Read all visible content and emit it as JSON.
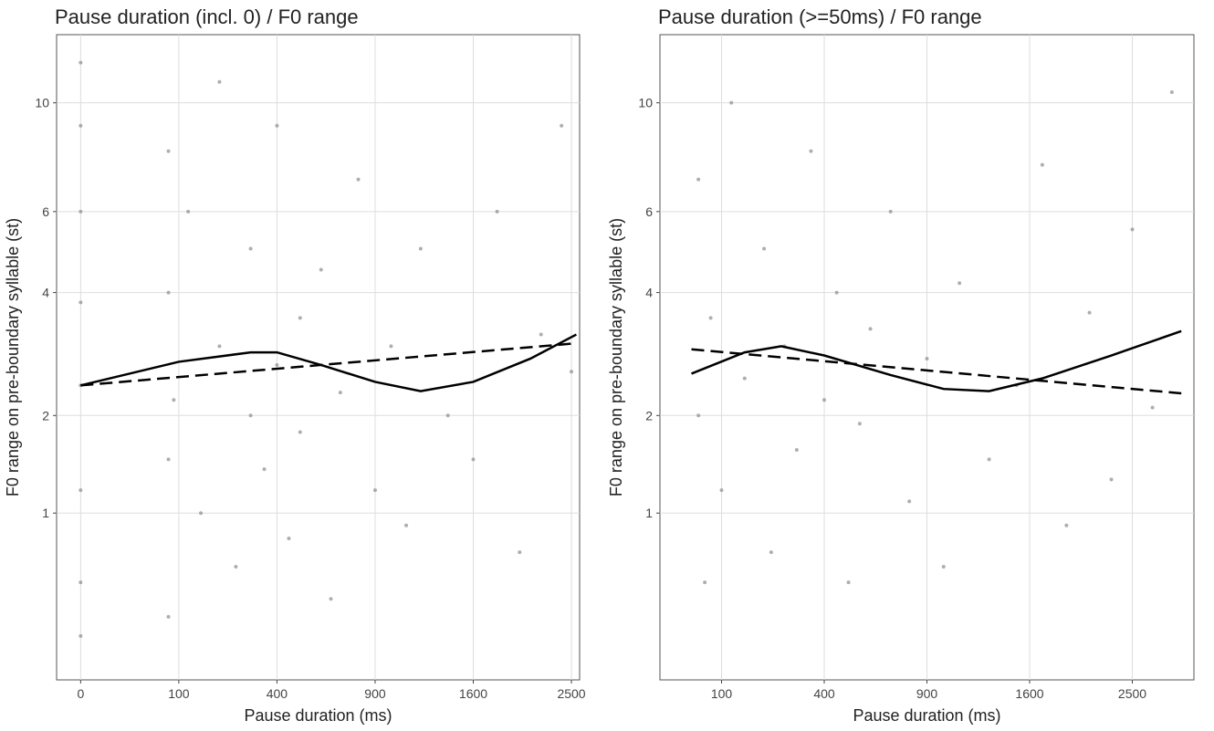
{
  "chart_data": [
    {
      "type": "scatter",
      "title": "Pause duration (incl. 0) / F0 range",
      "xlabel": "Pause duration (ms)",
      "ylabel": "F0 range on pre-boundary syllable (st)",
      "xscale": "sqrt",
      "yscale": "log1p",
      "grid": true,
      "xlim": [
        -6,
        2584
      ],
      "ylim": [
        0,
        13.6
      ],
      "xticks": [
        0,
        100,
        400,
        900,
        1600,
        2500
      ],
      "yticks": [
        1,
        2,
        4,
        6,
        10
      ],
      "series": [
        {
          "type": "scatter",
          "color": "#8c8c8c",
          "x": [
            0,
            0,
            0,
            0,
            0,
            0,
            0,
            0,
            80,
            80,
            80,
            80,
            90,
            120,
            150,
            200,
            200,
            250,
            300,
            300,
            350,
            400,
            400,
            450,
            500,
            500,
            600,
            650,
            700,
            800,
            900,
            1000,
            1100,
            1200,
            1400,
            1600,
            1800,
            2000,
            2200,
            2400,
            2500
          ],
          "values": [
            0.5,
            1.2,
            2.4,
            3.8,
            6,
            9,
            12,
            0.2,
            1.5,
            4,
            8,
            0.3,
            2.2,
            6,
            1,
            3,
            11,
            0.6,
            2,
            5,
            1.4,
            2.7,
            9,
            0.8,
            3.5,
            1.8,
            4.5,
            0.4,
            2.3,
            7,
            1.2,
            3,
            0.9,
            5,
            2,
            1.5,
            6,
            0.7,
            3.2,
            9,
            2.6
          ]
        },
        {
          "type": "line",
          "style": "solid",
          "color": "#000000",
          "x": [
            0,
            100,
            300,
            400,
            600,
            900,
            1200,
            1600,
            2100,
            2550
          ],
          "values": [
            2.4,
            2.75,
            2.9,
            2.9,
            2.7,
            2.45,
            2.32,
            2.45,
            2.8,
            3.2
          ]
        },
        {
          "type": "line",
          "style": "dashed",
          "color": "#000000",
          "x": [
            0,
            2550
          ],
          "values": [
            2.4,
            3.05
          ]
        }
      ]
    },
    {
      "type": "scatter",
      "title": "Pause duration (>=50ms) / F0 range",
      "xlabel": "Pause duration (ms)",
      "ylabel": "F0 range on pre-boundary syllable (st)",
      "xscale": "sqrt",
      "yscale": "log1p",
      "grid": true,
      "xlim": [
        16,
        3136
      ],
      "ylim": [
        0,
        13.6
      ],
      "xticks": [
        100,
        400,
        900,
        1600,
        2500
      ],
      "yticks": [
        1,
        2,
        4,
        6,
        10
      ],
      "series": [
        {
          "type": "scatter",
          "color": "#8c8c8c",
          "x": [
            60,
            60,
            70,
            80,
            100,
            120,
            150,
            200,
            220,
            260,
            300,
            350,
            400,
            450,
            500,
            550,
            600,
            700,
            800,
            900,
            1000,
            1100,
            1300,
            1500,
            1700,
            1900,
            2100,
            2300,
            2500,
            2700,
            2900
          ],
          "values": [
            2,
            7,
            0.5,
            3.5,
            1.2,
            10,
            2.5,
            5,
            0.7,
            3,
            1.6,
            8,
            2.2,
            4,
            0.5,
            1.9,
            3.3,
            6,
            1.1,
            2.8,
            0.6,
            4.2,
            1.5,
            2.4,
            7.5,
            0.9,
            3.6,
            1.3,
            5.5,
            2.1,
            10.5
          ]
        },
        {
          "type": "line",
          "style": "solid",
          "color": "#000000",
          "x": [
            50,
            150,
            250,
            400,
            700,
            1000,
            1300,
            1700,
            2300,
            3000
          ],
          "values": [
            2.57,
            2.9,
            3.0,
            2.85,
            2.55,
            2.35,
            2.32,
            2.5,
            2.85,
            3.26
          ]
        },
        {
          "type": "line",
          "style": "dashed",
          "color": "#000000",
          "x": [
            50,
            3000
          ],
          "values": [
            2.95,
            2.29
          ]
        }
      ]
    }
  ]
}
